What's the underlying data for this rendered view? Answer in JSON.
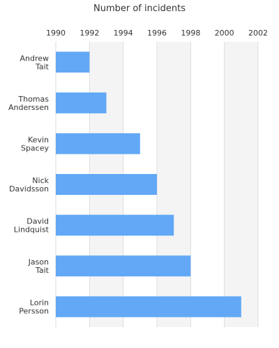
{
  "chart_data": {
    "type": "bar",
    "orientation": "horizontal",
    "title": "Number of incidents",
    "xlabel": "",
    "ylabel": "",
    "categories": [
      [
        "Andrew",
        "Tait"
      ],
      [
        "Thomas",
        "Anderssen"
      ],
      [
        "Kevin",
        "Spacey"
      ],
      [
        "Nick",
        "Davidsson"
      ],
      [
        "David",
        "Lindquist"
      ],
      [
        "Jason",
        "Tait"
      ],
      [
        "Lorin",
        "Persson"
      ]
    ],
    "values": [
      1992,
      1993,
      1995,
      1996,
      1997,
      1998,
      2001
    ],
    "xlim": [
      1990,
      2002
    ],
    "xticks": [
      "1990",
      "1992",
      "1994",
      "1996",
      "1998",
      "2000",
      "2002"
    ],
    "axis_position": "top",
    "grid": true,
    "alternating_bands": true,
    "legend": "none",
    "colors": {
      "bar": "#62a8f6",
      "band": "#f4f4f4",
      "grid": "#dddddd",
      "text": "#333333"
    }
  }
}
